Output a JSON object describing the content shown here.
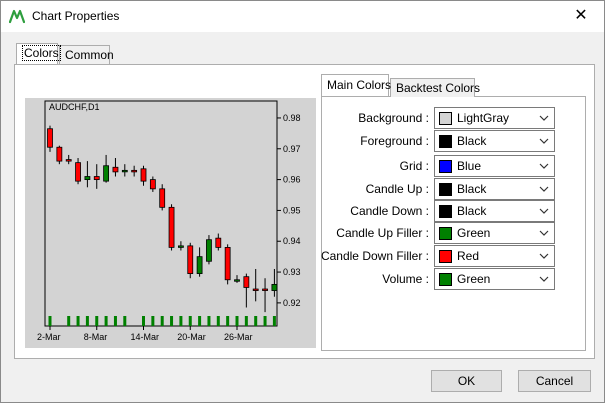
{
  "window": {
    "title": "Chart Properties",
    "close_glyph": "✕",
    "accent": "#2e9e3e"
  },
  "outer_tabs": [
    {
      "label": "Colors",
      "selected": true
    },
    {
      "label": "Common",
      "selected": false
    }
  ],
  "inner_tabs": [
    {
      "label": "Main Colors",
      "selected": true
    },
    {
      "label": "Backtest Colors",
      "selected": false
    }
  ],
  "color_settings": [
    {
      "label": "Background :",
      "value": "LightGray",
      "swatch": "#d3d3d3"
    },
    {
      "label": "Foreground :",
      "value": "Black",
      "swatch": "#000000"
    },
    {
      "label": "Grid :",
      "value": "Blue",
      "swatch": "#0000ff"
    },
    {
      "label": "Candle Up :",
      "value": "Black",
      "swatch": "#000000"
    },
    {
      "label": "Candle Down :",
      "value": "Black",
      "swatch": "#000000"
    },
    {
      "label": "Candle Up Filler :",
      "value": "Green",
      "swatch": "#008000"
    },
    {
      "label": "Candle Down Filler :",
      "value": "Red",
      "swatch": "#ff0000"
    },
    {
      "label": "Volume :",
      "value": "Green",
      "swatch": "#008000"
    }
  ],
  "buttons": {
    "ok": "OK",
    "cancel": "Cancel"
  },
  "chart_data": {
    "type": "candlestick",
    "title": "AUDCHF,D1",
    "x_tick_labels": [
      "2-Mar",
      "8-Mar",
      "14-Mar",
      "20-Mar",
      "26-Mar"
    ],
    "y_tick_labels": [
      "0.98",
      "0.97",
      "0.96",
      "0.95",
      "0.94",
      "0.93",
      "0.92"
    ],
    "y_ticks": [
      0.98,
      0.97,
      0.96,
      0.95,
      0.94,
      0.93,
      0.92
    ],
    "ylim": [
      0.9125,
      0.9855
    ],
    "candles": [
      {
        "open": 0.9765,
        "high": 0.9775,
        "low": 0.969,
        "close": 0.9705
      },
      {
        "open": 0.9705,
        "high": 0.971,
        "low": 0.965,
        "close": 0.966
      },
      {
        "open": 0.9665,
        "high": 0.968,
        "low": 0.965,
        "close": 0.966
      },
      {
        "open": 0.9655,
        "high": 0.967,
        "low": 0.9585,
        "close": 0.9595
      },
      {
        "open": 0.96,
        "high": 0.966,
        "low": 0.9575,
        "close": 0.961
      },
      {
        "open": 0.961,
        "high": 0.965,
        "low": 0.957,
        "close": 0.96
      },
      {
        "open": 0.9595,
        "high": 0.968,
        "low": 0.959,
        "close": 0.9645
      },
      {
        "open": 0.964,
        "high": 0.967,
        "low": 0.961,
        "close": 0.9625
      },
      {
        "open": 0.963,
        "high": 0.965,
        "low": 0.961,
        "close": 0.963
      },
      {
        "open": 0.963,
        "high": 0.9645,
        "low": 0.961,
        "close": 0.9625
      },
      {
        "open": 0.9635,
        "high": 0.9645,
        "low": 0.958,
        "close": 0.9595
      },
      {
        "open": 0.96,
        "high": 0.961,
        "low": 0.956,
        "close": 0.957
      },
      {
        "open": 0.957,
        "high": 0.9585,
        "low": 0.95,
        "close": 0.951
      },
      {
        "open": 0.951,
        "high": 0.952,
        "low": 0.937,
        "close": 0.938
      },
      {
        "open": 0.938,
        "high": 0.94,
        "low": 0.937,
        "close": 0.9385
      },
      {
        "open": 0.9385,
        "high": 0.9395,
        "low": 0.928,
        "close": 0.9295
      },
      {
        "open": 0.9295,
        "high": 0.938,
        "low": 0.9285,
        "close": 0.935
      },
      {
        "open": 0.9335,
        "high": 0.942,
        "low": 0.9325,
        "close": 0.9405
      },
      {
        "open": 0.941,
        "high": 0.9425,
        "low": 0.937,
        "close": 0.938
      },
      {
        "open": 0.938,
        "high": 0.939,
        "low": 0.926,
        "close": 0.9275
      },
      {
        "open": 0.9275,
        "high": 0.929,
        "low": 0.9265,
        "close": 0.9275
      },
      {
        "open": 0.9285,
        "high": 0.9295,
        "low": 0.9185,
        "close": 0.925
      },
      {
        "open": 0.9245,
        "high": 0.931,
        "low": 0.9205,
        "close": 0.924
      },
      {
        "open": 0.9245,
        "high": 0.928,
        "low": 0.917,
        "close": 0.924
      },
      {
        "open": 0.924,
        "high": 0.931,
        "low": 0.922,
        "close": 0.926
      }
    ],
    "volume_relative": [
      1,
      0,
      1,
      1,
      1,
      1,
      1,
      1,
      1,
      0,
      1,
      1,
      1,
      1,
      1,
      1,
      1,
      1,
      1,
      1,
      1,
      1,
      1,
      1,
      1
    ],
    "colors": {
      "background": "#d3d3d3",
      "foreground": "#000000",
      "up_filler": "#008000",
      "down_filler": "#ff0000",
      "volume": "#008000"
    },
    "grid": false
  }
}
